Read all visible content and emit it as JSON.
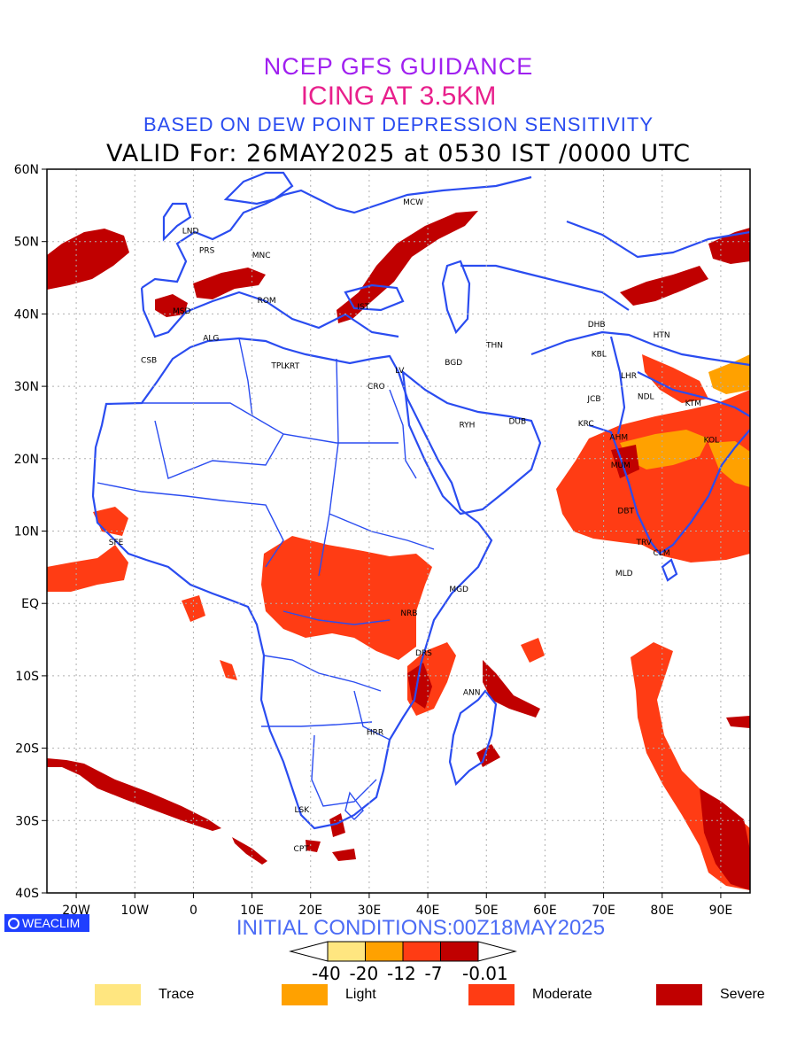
{
  "header": {
    "line1": "NCEP GFS GUIDANCE",
    "line2": "ICING AT 3.5KM",
    "line3": "BASED ON DEW POINT DEPRESSION SENSITIVITY",
    "valid": "VALID For: 26MAY2025 at 0530 IST /0000 UTC"
  },
  "map": {
    "lon_range": [
      -25,
      95
    ],
    "lat_range": [
      -40,
      60
    ],
    "lon_ticks": [
      "20W",
      "10W",
      "0",
      "10E",
      "20E",
      "30E",
      "40E",
      "50E",
      "60E",
      "70E",
      "80E",
      "90E"
    ],
    "lat_ticks": [
      "60N",
      "50N",
      "40N",
      "30N",
      "20N",
      "10N",
      "EQ",
      "10S",
      "20S",
      "30S",
      "40S"
    ],
    "boundary_color": "#2a4cf0",
    "stations": [
      {
        "code": "MCW",
        "lon": 37.5,
        "lat": 55.5
      },
      {
        "code": "LND",
        "lon": -0.5,
        "lat": 51.5
      },
      {
        "code": "PRS",
        "lon": 2.3,
        "lat": 48.8
      },
      {
        "code": "MNC",
        "lon": 11.6,
        "lat": 48.1
      },
      {
        "code": "ROM",
        "lon": 12.5,
        "lat": 41.9
      },
      {
        "code": "MSD",
        "lon": -2.0,
        "lat": 40.4
      },
      {
        "code": "IST",
        "lon": 29.0,
        "lat": 41.0
      },
      {
        "code": "ALG",
        "lon": 3.0,
        "lat": 36.7
      },
      {
        "code": "CSB",
        "lon": -7.6,
        "lat": 33.6
      },
      {
        "code": "TPL",
        "lon": 14.5,
        "lat": 32.9
      },
      {
        "code": "KRT",
        "lon": 16.8,
        "lat": 32.8
      },
      {
        "code": "CRO",
        "lon": 31.2,
        "lat": 30.0
      },
      {
        "code": "LV",
        "lon": 35.2,
        "lat": 32.2
      },
      {
        "code": "BGD",
        "lon": 44.4,
        "lat": 33.3
      },
      {
        "code": "THN",
        "lon": 51.4,
        "lat": 35.7
      },
      {
        "code": "RYH",
        "lon": 46.7,
        "lat": 24.7
      },
      {
        "code": "DUB",
        "lon": 55.3,
        "lat": 25.2
      },
      {
        "code": "DHB",
        "lon": 68.8,
        "lat": 38.6
      },
      {
        "code": "KBL",
        "lon": 69.2,
        "lat": 34.5
      },
      {
        "code": "LHR",
        "lon": 74.3,
        "lat": 31.5
      },
      {
        "code": "HTN",
        "lon": 79.9,
        "lat": 37.1
      },
      {
        "code": "NDL",
        "lon": 77.2,
        "lat": 28.6
      },
      {
        "code": "JCB",
        "lon": 68.4,
        "lat": 28.3
      },
      {
        "code": "KTM",
        "lon": 85.3,
        "lat": 27.7
      },
      {
        "code": "KRC",
        "lon": 67.0,
        "lat": 24.9
      },
      {
        "code": "AHM",
        "lon": 72.6,
        "lat": 23.0
      },
      {
        "code": "KOL",
        "lon": 88.4,
        "lat": 22.6
      },
      {
        "code": "MUM",
        "lon": 72.9,
        "lat": 19.1
      },
      {
        "code": "DBT",
        "lon": 73.8,
        "lat": 12.8
      },
      {
        "code": "TRV",
        "lon": 76.9,
        "lat": 8.5
      },
      {
        "code": "CLM",
        "lon": 79.9,
        "lat": 7.0
      },
      {
        "code": "MLD",
        "lon": 73.5,
        "lat": 4.2
      },
      {
        "code": "SFE",
        "lon": -13.2,
        "lat": 8.5
      },
      {
        "code": "MGD",
        "lon": 45.3,
        "lat": 2.0
      },
      {
        "code": "NRB",
        "lon": 36.8,
        "lat": -1.3
      },
      {
        "code": "DRS",
        "lon": 39.3,
        "lat": -6.8
      },
      {
        "code": "ANN",
        "lon": 47.5,
        "lat": -12.3
      },
      {
        "code": "HRR",
        "lon": 31.0,
        "lat": -17.8
      },
      {
        "code": "LSK",
        "lon": 18.5,
        "lat": -28.5
      },
      {
        "code": "CPT",
        "lon": 18.4,
        "lat": -33.9
      }
    ]
  },
  "initial_conditions": "INITIAL CONDITIONS:00Z18MAY2025",
  "colorbar": {
    "ticks": [
      "-40",
      "-20",
      "-12",
      "-7",
      "-0.01"
    ],
    "colors": [
      "#ffe680",
      "#ffa100",
      "#ff3c14",
      "#c00000"
    ]
  },
  "legend": [
    {
      "label": "Trace",
      "color": "#ffe680"
    },
    {
      "label": "Light",
      "color": "#ffa100"
    },
    {
      "label": "Moderate",
      "color": "#ff3c14"
    },
    {
      "label": "Severe",
      "color": "#c00000"
    }
  ],
  "branding": "WEACLIM"
}
